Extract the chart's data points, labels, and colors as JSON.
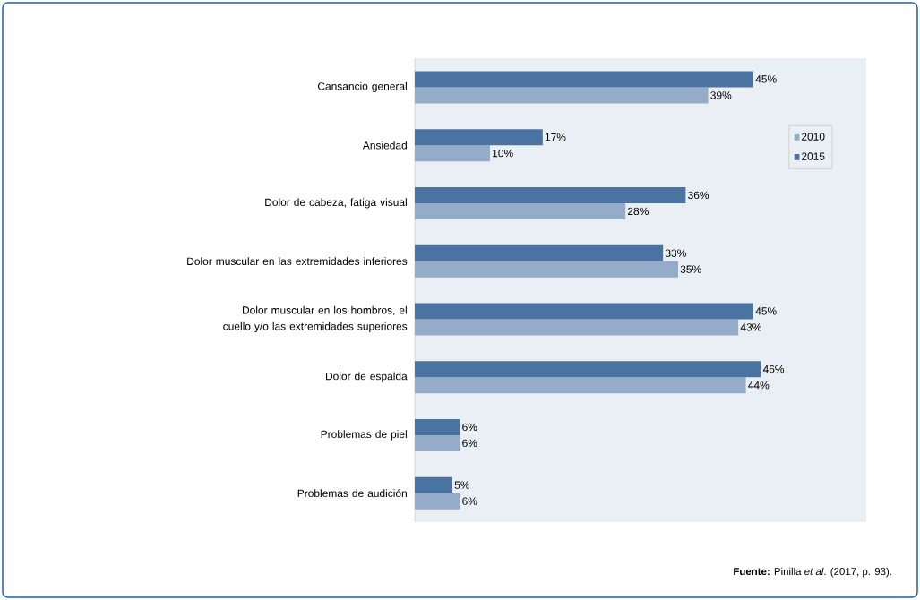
{
  "chart_data": {
    "type": "bar",
    "orientation": "horizontal",
    "categories": [
      "Cansancio general",
      "Ansiedad",
      "Dolor de cabeza, fatiga visual",
      "Dolor muscular en las extremidades inferiores",
      "Dolor muscular en los hombros, el cuello y/o las extremidades superiores",
      "Dolor de espalda",
      "Problemas de piel",
      "Problemas de audición"
    ],
    "series": [
      {
        "name": "2010",
        "color": "#95abca",
        "values": [
          39,
          10,
          28,
          35,
          43,
          44,
          6,
          6
        ],
        "value_labels": [
          "39%",
          "10%",
          "28%",
          "35%",
          "43%",
          "44%",
          "6%",
          "6%"
        ]
      },
      {
        "name": "2015",
        "color": "#4a73a2",
        "values": [
          45,
          17,
          36,
          33,
          45,
          46,
          6,
          5
        ],
        "value_labels": [
          "45%",
          "17%",
          "36%",
          "33%",
          "45%",
          "46%",
          "6%",
          "5%"
        ]
      }
    ],
    "xlim": [
      0,
      60
    ],
    "tick_labels": "y",
    "legend": "top right",
    "annotations": [
      "**Fuente:** Pinilla *et al*. (2017, p. 93)."
    ]
  }
}
